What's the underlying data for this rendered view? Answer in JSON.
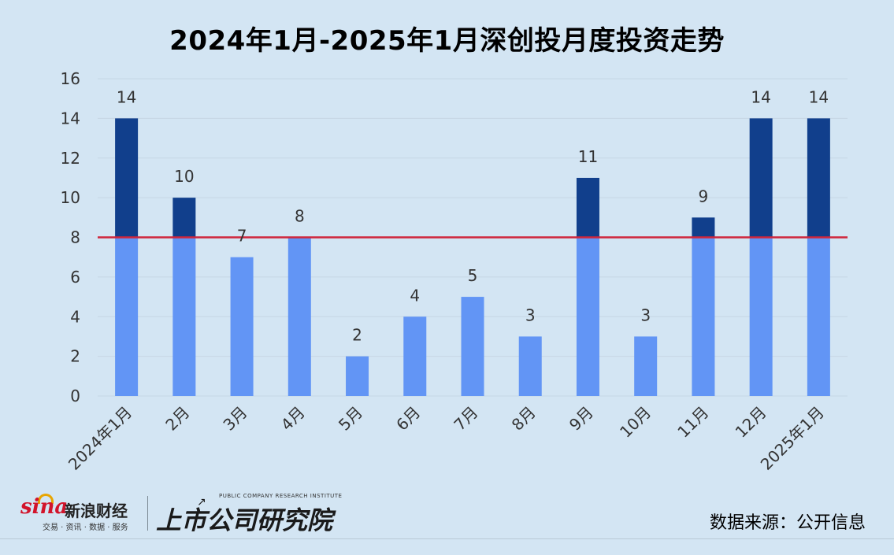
{
  "title": "2024年1月-2025年1月深创投月度投资走势",
  "source": "数据来源：公开信息",
  "logos": {
    "sina_mark": "sina",
    "sina_brand": "新浪财经",
    "sina_sub": "交易 · 资讯 · 数据 · 服务",
    "research_name": "上市公司研究院",
    "research_tag": "PUBLIC COMPANY RESEARCH INSTITUTE"
  },
  "colors": {
    "bar_base": "#6295f5",
    "bar_top": "#113f8c",
    "reference_line": "#d0253b",
    "grid": "#c6d6e4",
    "tick_text": "#333333",
    "label_text": "#333333"
  },
  "chart_data": {
    "type": "bar",
    "categories": [
      "2024年1月",
      "2月",
      "3月",
      "4月",
      "5月",
      "6月",
      "7月",
      "8月",
      "9月",
      "10月",
      "11月",
      "12月",
      "2025年1月"
    ],
    "values": [
      14,
      10,
      7,
      8,
      2,
      4,
      5,
      3,
      11,
      3,
      9,
      14,
      14
    ],
    "reference_line": 8,
    "split_color_at": 8,
    "ylim": [
      0,
      16
    ],
    "yticks": [
      0,
      2,
      4,
      6,
      8,
      10,
      12,
      14,
      16
    ],
    "data_labels": true,
    "grid": "horizontal",
    "legend": "none",
    "title": "2024年1月-2025年1月深创投月度投资走势",
    "xlabel": "",
    "ylabel": ""
  }
}
